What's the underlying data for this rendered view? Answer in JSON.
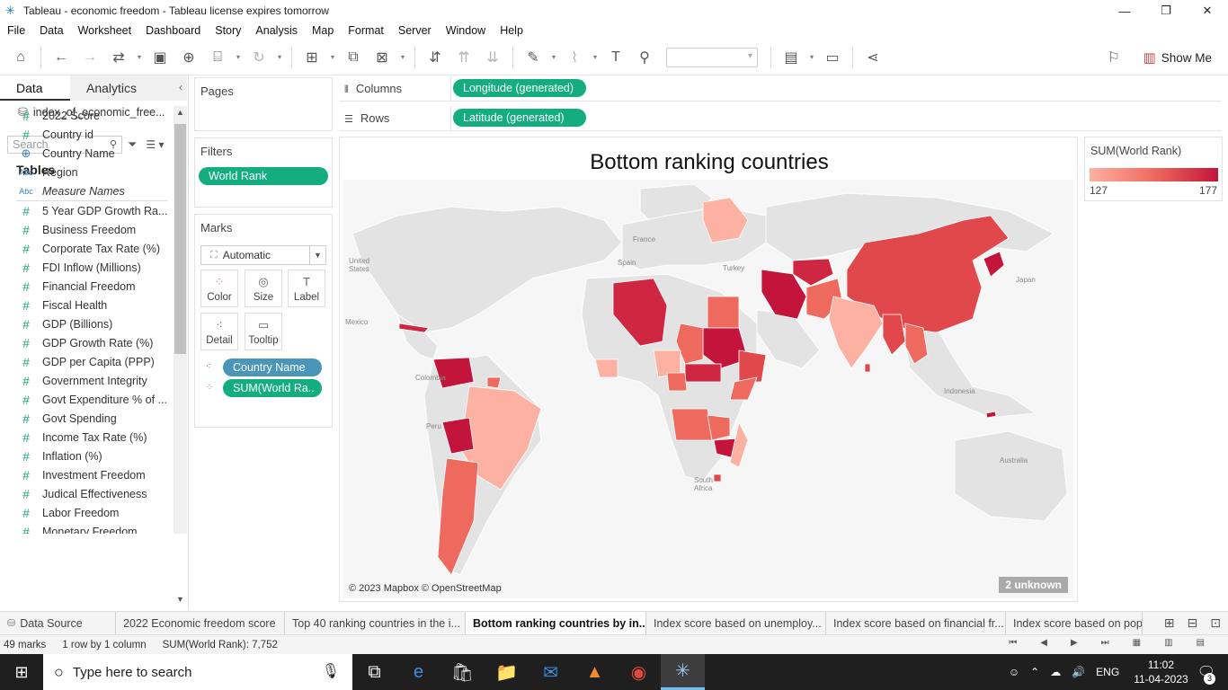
{
  "window": {
    "title": "Tableau - economic freedom - Tableau license expires tomorrow",
    "controls": [
      "—",
      "❐",
      "✕"
    ]
  },
  "menu": [
    "File",
    "Data",
    "Worksheet",
    "Dashboard",
    "Story",
    "Analysis",
    "Map",
    "Format",
    "Server",
    "Window",
    "Help"
  ],
  "toolbar": {
    "show_me": "Show Me"
  },
  "data_pane": {
    "tab_data": "Data",
    "tab_analytics": "Analytics",
    "data_source": "index_of_economic_free...",
    "search_placeholder": "Search",
    "tables_heading": "Tables",
    "dimension_fields": [
      {
        "name": "2022 Score",
        "type": "#"
      },
      {
        "name": "Country id",
        "type": "#"
      },
      {
        "name": "Country Name",
        "type": "geo"
      },
      {
        "name": "Region",
        "type": "Abc"
      },
      {
        "name": "Measure Names",
        "type": "Abc"
      }
    ],
    "measure_fields": [
      "5 Year GDP Growth Ra...",
      "Business Freedom",
      "Corporate Tax Rate (%)",
      "FDI Inflow (Millions)",
      "Financial Freedom",
      "Fiscal Health",
      "GDP (Billions)",
      "GDP Growth Rate (%)",
      "GDP per Capita (PPP)",
      "Government Integrity",
      "Govt Expenditure % of ...",
      "Govt Spending",
      "Income Tax Rate (%)",
      "Inflation (%)",
      "Investment Freedom",
      "Judical Effectiveness",
      "Labor Freedom",
      "Monetary Freedom"
    ]
  },
  "shelves": {
    "pages_label": "Pages",
    "filters_label": "Filters",
    "filter_pill": "World Rank",
    "marks_label": "Marks",
    "mark_type": "Automatic",
    "mark_buttons": [
      "Color",
      "Size",
      "Label",
      "Detail",
      "Tooltip"
    ],
    "mark_pills": [
      "Country Name",
      "SUM(World Ra.."
    ],
    "columns_label": "Columns",
    "columns_pill": "Longitude (generated)",
    "rows_label": "Rows",
    "rows_pill": "Latitude (generated)"
  },
  "viz": {
    "title": "Bottom ranking countries",
    "attribution": "© 2023 Mapbox © OpenStreetMap",
    "unknown_badge": "2 unknown",
    "map_labels": [
      "France",
      "Spain",
      "Turkey",
      "United States",
      "Mexico",
      "Colombia",
      "Peru",
      "Japan",
      "Indonesia",
      "Australia",
      "South Africa"
    ]
  },
  "legend": {
    "title": "SUM(World Rank)",
    "min": "127",
    "max": "177",
    "color_low": "#fcb1a3",
    "color_high": "#c3143b"
  },
  "sheet_tabs": [
    {
      "label": "Data Source",
      "active": false
    },
    {
      "label": "2022 Economic freedom score",
      "active": false
    },
    {
      "label": "Top 40 ranking countries in the i...",
      "active": false
    },
    {
      "label": "Bottom ranking countries by in...",
      "active": true
    },
    {
      "label": "Index score based on unemploy...",
      "active": false
    },
    {
      "label": "Index score based on financial fr...",
      "active": false
    },
    {
      "label": "Index score based on popu",
      "active": false
    }
  ],
  "status": {
    "marks": "49 marks",
    "rows_cols": "1 row by 1 column",
    "sum": "SUM(World Rank): 7,752"
  },
  "taskbar": {
    "search_placeholder": "Type here to search",
    "lang": "ENG",
    "time": "11:02",
    "date": "11-04-2023",
    "notifications": "3"
  }
}
